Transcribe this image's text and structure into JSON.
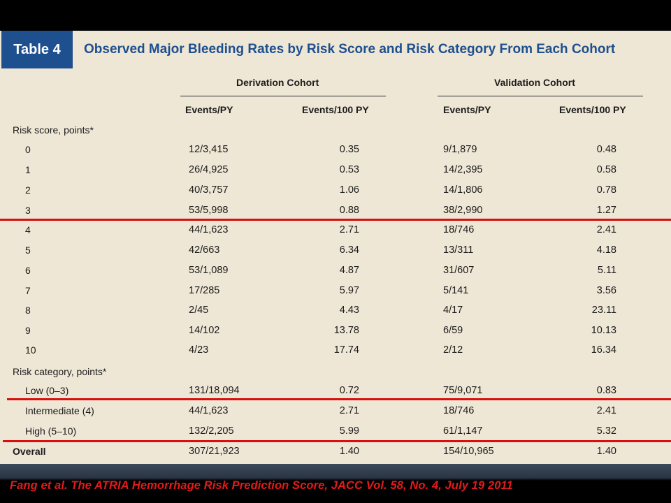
{
  "table": {
    "tag": "Table 4",
    "title": "Observed Major Bleeding Rates by Risk Score and Risk Category From Each Cohort",
    "cohorts": [
      "Derivation Cohort",
      "Validation Cohort"
    ],
    "columns": [
      "Events/PY",
      "Events/100 PY",
      "Events/PY",
      "Events/100 PY"
    ],
    "section_score": "Risk score, points*",
    "score_rows": [
      {
        "label": "0",
        "d_events": "12/3,415",
        "d_rate": "0.35",
        "v_events": "9/1,879",
        "v_rate": "0.48"
      },
      {
        "label": "1",
        "d_events": "26/4,925",
        "d_rate": "0.53",
        "v_events": "14/2,395",
        "v_rate": "0.58"
      },
      {
        "label": "2",
        "d_events": "40/3,757",
        "d_rate": "1.06",
        "v_events": "14/1,806",
        "v_rate": "0.78"
      },
      {
        "label": "3",
        "d_events": "53/5,998",
        "d_rate": "0.88",
        "v_events": "38/2,990",
        "v_rate": "1.27"
      },
      {
        "label": "4",
        "d_events": "44/1,623",
        "d_rate": "2.71",
        "v_events": "18/746",
        "v_rate": "2.41"
      },
      {
        "label": "5",
        "d_events": "42/663",
        "d_rate": "6.34",
        "v_events": "13/311",
        "v_rate": "4.18"
      },
      {
        "label": "6",
        "d_events": "53/1,089",
        "d_rate": "4.87",
        "v_events": "31/607",
        "v_rate": "5.11"
      },
      {
        "label": "7",
        "d_events": "17/285",
        "d_rate": "5.97",
        "v_events": "5/141",
        "v_rate": "3.56"
      },
      {
        "label": "8",
        "d_events": "2/45",
        "d_rate": "4.43",
        "v_events": "4/17",
        "v_rate": "23.11"
      },
      {
        "label": "9",
        "d_events": "14/102",
        "d_rate": "13.78",
        "v_events": "6/59",
        "v_rate": "10.13"
      },
      {
        "label": "10",
        "d_events": "4/23",
        "d_rate": "17.74",
        "v_events": "2/12",
        "v_rate": "16.34"
      }
    ],
    "section_category": "Risk category, points*",
    "category_rows": [
      {
        "label": "Low (0–3)",
        "d_events": "131/18,094",
        "d_rate": "0.72",
        "v_events": "75/9,071",
        "v_rate": "0.83"
      },
      {
        "label": "Intermediate (4)",
        "d_events": "44/1,623",
        "d_rate": "2.71",
        "v_events": "18/746",
        "v_rate": "2.41"
      },
      {
        "label": "High (5–10)",
        "d_events": "132/2,205",
        "d_rate": "5.99",
        "v_events": "61/1,147",
        "v_rate": "5.32"
      }
    ],
    "overall": {
      "label": "Overall",
      "d_events": "307/21,923",
      "d_rate": "1.40",
      "v_events": "154/10,965",
      "v_rate": "1.40"
    }
  },
  "citation": "Fang et al. The ATRIA Hemorrhage Risk Prediction Score, JACC Vol. 58, No. 4, July 19 2011",
  "colors": {
    "tag_background": "#1e4f8f",
    "title_text": "#1e4f8f",
    "table_background": "#efe7d6",
    "highlight_lines": "#d60f0f",
    "citation_text": "#e31b1b"
  }
}
